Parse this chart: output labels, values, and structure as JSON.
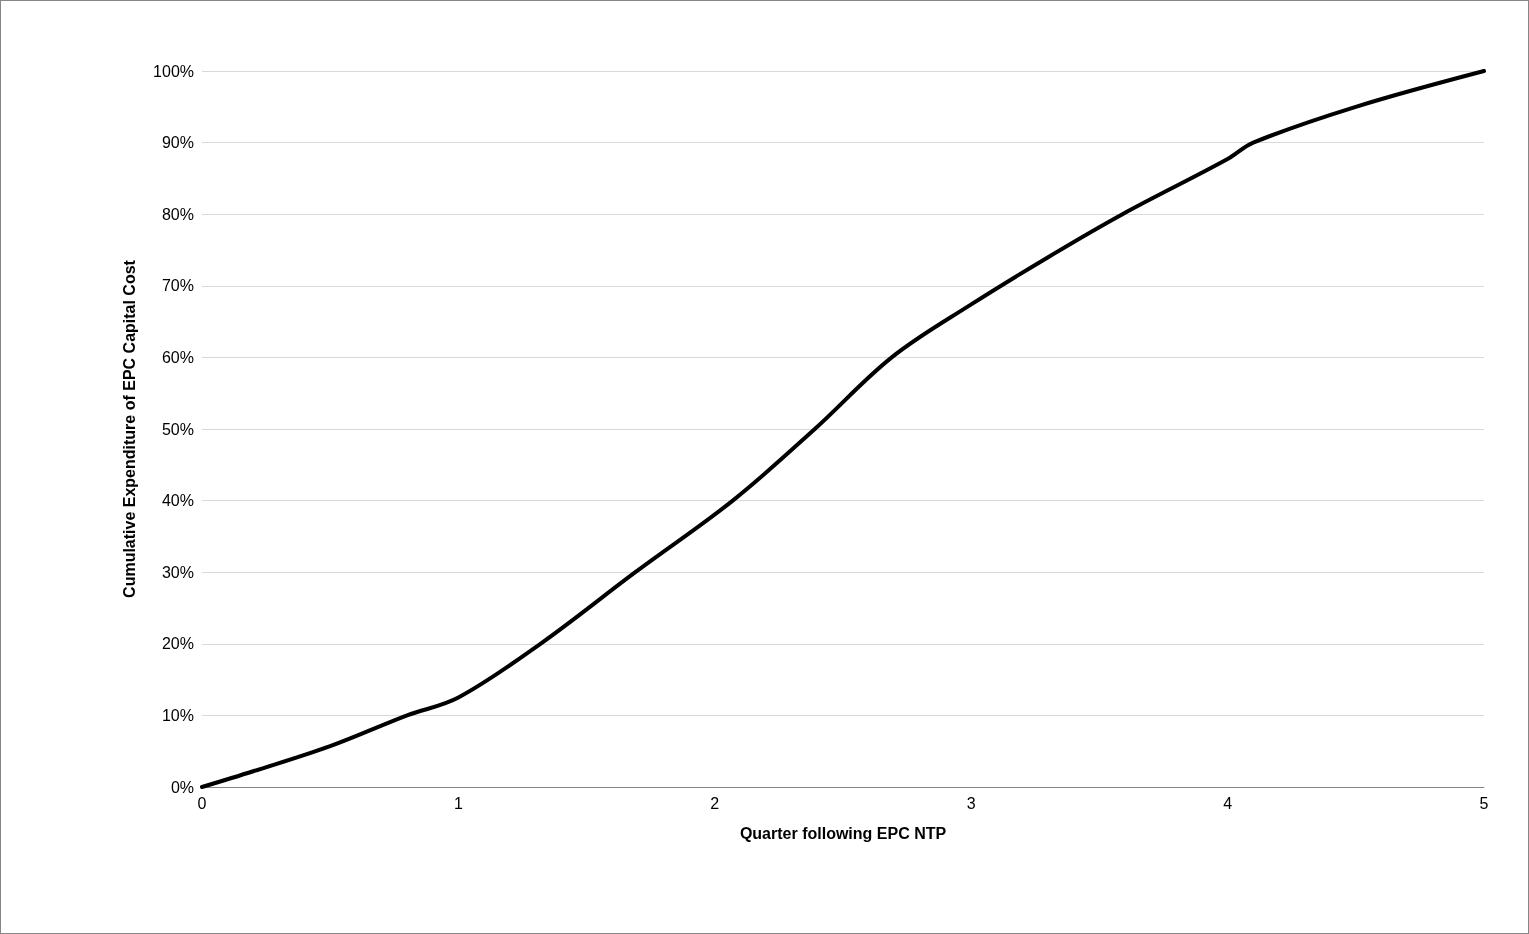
{
  "chart_data": {
    "type": "line",
    "xlabel": "Quarter following EPC NTP",
    "ylabel": "Cumulative Expenditure of EPC Capital Cost",
    "series": [
      {
        "color": "#000000",
        "x": [
          0,
          0.2,
          0.5,
          0.8,
          1,
          1.32,
          1.69,
          2.07,
          2.39,
          2.69,
          3,
          3.3,
          3.59,
          4,
          4.1,
          4.5,
          5
        ],
        "values": [
          0,
          2.2,
          5.7,
          10,
          12.5,
          20,
          30,
          40,
          50,
          60,
          67.4,
          74,
          80,
          87.7,
          90,
          95,
          100
        ]
      }
    ],
    "xlim": [
      0,
      5
    ],
    "xticks": [
      0,
      1,
      2,
      3,
      4,
      5
    ],
    "ylim": [
      0,
      100
    ],
    "yticks": [
      {
        "value": 0,
        "label": "0%"
      },
      {
        "value": 10,
        "label": "10%"
      },
      {
        "value": 20,
        "label": "20%"
      },
      {
        "value": 30,
        "label": "30%"
      },
      {
        "value": 40,
        "label": "40%"
      },
      {
        "value": 50,
        "label": "50%"
      },
      {
        "value": 60,
        "label": "60%"
      },
      {
        "value": 70,
        "label": "70%"
      },
      {
        "value": 80,
        "label": "80%"
      },
      {
        "value": 90,
        "label": "90%"
      },
      {
        "value": 100,
        "label": "100%"
      }
    ],
    "grid": "y",
    "marker": "none",
    "line_style": "solid"
  }
}
